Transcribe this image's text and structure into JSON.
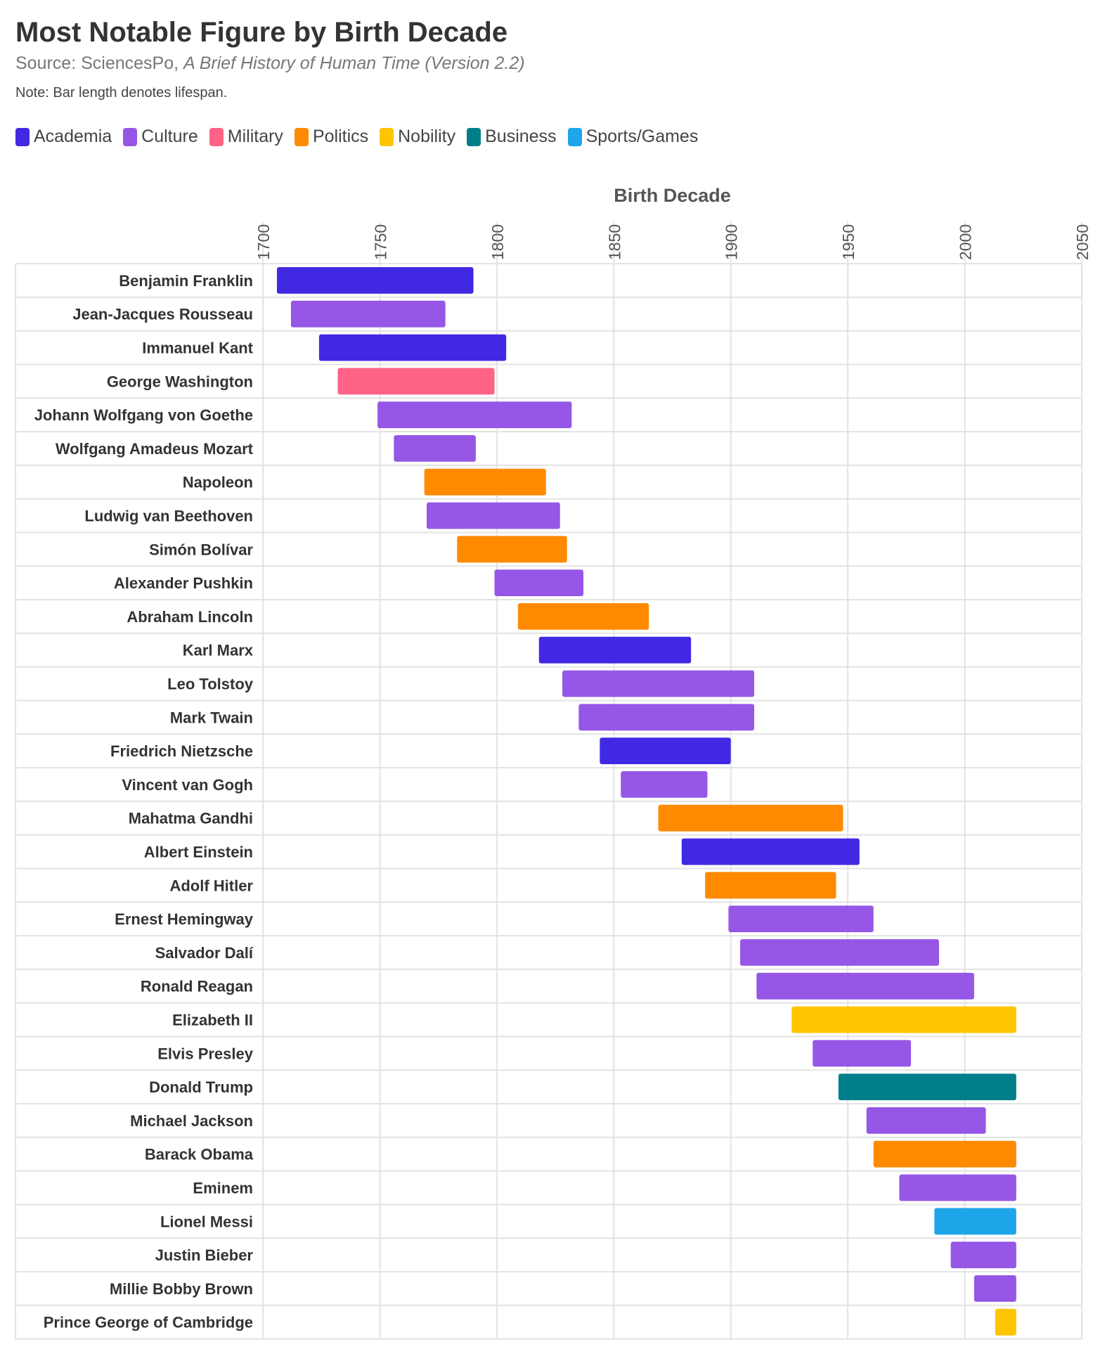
{
  "title": "Most Notable Figure by Birth Decade",
  "source_prefix": "Source: SciencesPo, ",
  "source_work": "A Brief History of Human Time (Version 2.2)",
  "note": "Note: Bar length denotes lifespan.",
  "colors": {
    "Academia": "#4129e3",
    "Culture": "#9656e6",
    "Military": "#ff6386",
    "Politics": "#ff8a00",
    "Nobility": "#ffc400",
    "Business": "#007e8a",
    "Sports/Games": "#1ea5ea"
  },
  "chart_data": {
    "type": "bar",
    "orientation": "horizontal-range",
    "xlabel": "Birth Decade",
    "xlim": [
      1700,
      2050
    ],
    "xticks": [
      "1700",
      "1750",
      "1800",
      "1850",
      "1900",
      "1950",
      "2000",
      "2050"
    ],
    "grid": true,
    "legend_position": "top-left",
    "legend": [
      "Academia",
      "Culture",
      "Military",
      "Politics",
      "Nobility",
      "Business",
      "Sports/Games"
    ],
    "figures": [
      {
        "name": "Benjamin Franklin",
        "start": 1706,
        "end": 1790,
        "category": "Academia"
      },
      {
        "name": "Jean-Jacques Rousseau",
        "start": 1712,
        "end": 1778,
        "category": "Culture"
      },
      {
        "name": "Immanuel Kant",
        "start": 1724,
        "end": 1804,
        "category": "Academia"
      },
      {
        "name": "George Washington",
        "start": 1732,
        "end": 1799,
        "category": "Military"
      },
      {
        "name": "Johann Wolfgang von Goethe",
        "start": 1749,
        "end": 1832,
        "category": "Culture"
      },
      {
        "name": "Wolfgang Amadeus Mozart",
        "start": 1756,
        "end": 1791,
        "category": "Culture"
      },
      {
        "name": "Napoleon",
        "start": 1769,
        "end": 1821,
        "category": "Politics"
      },
      {
        "name": "Ludwig van Beethoven",
        "start": 1770,
        "end": 1827,
        "category": "Culture"
      },
      {
        "name": "Simón Bolívar",
        "start": 1783,
        "end": 1830,
        "category": "Politics"
      },
      {
        "name": "Alexander Pushkin",
        "start": 1799,
        "end": 1837,
        "category": "Culture"
      },
      {
        "name": "Abraham Lincoln",
        "start": 1809,
        "end": 1865,
        "category": "Politics"
      },
      {
        "name": "Karl Marx",
        "start": 1818,
        "end": 1883,
        "category": "Academia"
      },
      {
        "name": "Leo Tolstoy",
        "start": 1828,
        "end": 1910,
        "category": "Culture"
      },
      {
        "name": "Mark Twain",
        "start": 1835,
        "end": 1910,
        "category": "Culture"
      },
      {
        "name": "Friedrich Nietzsche",
        "start": 1844,
        "end": 1900,
        "category": "Academia"
      },
      {
        "name": "Vincent van Gogh",
        "start": 1853,
        "end": 1890,
        "category": "Culture"
      },
      {
        "name": "Mahatma Gandhi",
        "start": 1869,
        "end": 1948,
        "category": "Politics"
      },
      {
        "name": "Albert Einstein",
        "start": 1879,
        "end": 1955,
        "category": "Academia"
      },
      {
        "name": "Adolf Hitler",
        "start": 1889,
        "end": 1945,
        "category": "Politics"
      },
      {
        "name": "Ernest Hemingway",
        "start": 1899,
        "end": 1961,
        "category": "Culture"
      },
      {
        "name": "Salvador Dalí",
        "start": 1904,
        "end": 1989,
        "category": "Culture"
      },
      {
        "name": "Ronald Reagan",
        "start": 1911,
        "end": 2004,
        "category": "Culture"
      },
      {
        "name": "Elizabeth II",
        "start": 1926,
        "end": 2022,
        "category": "Nobility"
      },
      {
        "name": "Elvis Presley",
        "start": 1935,
        "end": 1977,
        "category": "Culture"
      },
      {
        "name": "Donald Trump",
        "start": 1946,
        "end": 2022,
        "category": "Business"
      },
      {
        "name": "Michael Jackson",
        "start": 1958,
        "end": 2009,
        "category": "Culture"
      },
      {
        "name": "Barack Obama",
        "start": 1961,
        "end": 2022,
        "category": "Politics"
      },
      {
        "name": "Eminem",
        "start": 1972,
        "end": 2022,
        "category": "Culture"
      },
      {
        "name": "Lionel Messi",
        "start": 1987,
        "end": 2022,
        "category": "Sports/Games"
      },
      {
        "name": "Justin Bieber",
        "start": 1994,
        "end": 2022,
        "category": "Culture"
      },
      {
        "name": "Millie Bobby Brown",
        "start": 2004,
        "end": 2022,
        "category": "Culture"
      },
      {
        "name": "Prince George of Cambridge",
        "start": 2013,
        "end": 2022,
        "category": "Nobility"
      }
    ]
  }
}
